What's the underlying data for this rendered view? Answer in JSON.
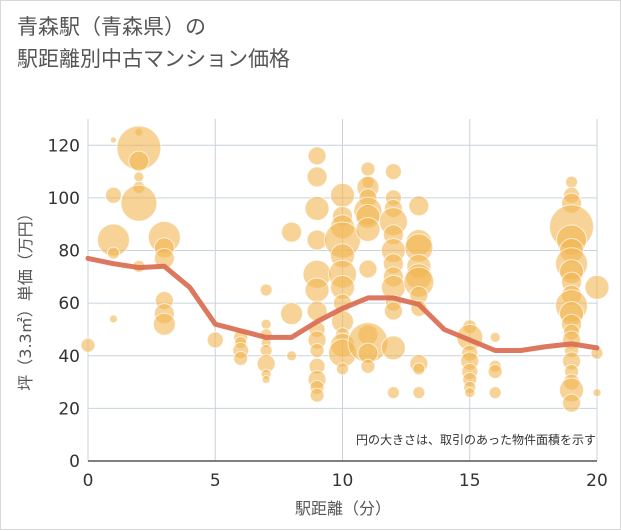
{
  "title": {
    "line1": "青森駅（青森県）の",
    "line2": "駅距離別中古マンション価格"
  },
  "chart_data": {
    "type": "scatter",
    "title": "青森駅（青森県）の駅距離別中古マンション価格",
    "xlabel": "駅距離（分）",
    "ylabel": "坪（3.3㎡）単価（万円）",
    "xlim": [
      0,
      20
    ],
    "ylim": [
      0,
      130
    ],
    "xticks": [
      0,
      5,
      10,
      15,
      20
    ],
    "yticks": [
      0,
      20,
      40,
      60,
      80,
      100,
      120
    ],
    "grid": true,
    "annotation": "円の大きさは、取引のあった物件面積を示す",
    "colors": {
      "bubble": "#f2b651",
      "trend": "#d9694f",
      "grid": "#c8d4dc",
      "axis": "#555555"
    },
    "bubbles": [
      {
        "x": 0,
        "y": 44,
        "s": 7
      },
      {
        "x": 1,
        "y": 122,
        "s": 3
      },
      {
        "x": 1,
        "y": 101,
        "s": 8
      },
      {
        "x": 1,
        "y": 84,
        "s": 16
      },
      {
        "x": 1,
        "y": 79,
        "s": 6
      },
      {
        "x": 1,
        "y": 54,
        "s": 4
      },
      {
        "x": 2,
        "y": 125,
        "s": 4
      },
      {
        "x": 2,
        "y": 119,
        "s": 22
      },
      {
        "x": 2,
        "y": 114,
        "s": 10
      },
      {
        "x": 2,
        "y": 108,
        "s": 5
      },
      {
        "x": 2,
        "y": 104,
        "s": 6
      },
      {
        "x": 2,
        "y": 98,
        "s": 18
      },
      {
        "x": 2,
        "y": 74,
        "s": 6
      },
      {
        "x": 3,
        "y": 85,
        "s": 16
      },
      {
        "x": 3,
        "y": 81,
        "s": 10
      },
      {
        "x": 3,
        "y": 77,
        "s": 10
      },
      {
        "x": 3,
        "y": 61,
        "s": 9
      },
      {
        "x": 3,
        "y": 56,
        "s": 10
      },
      {
        "x": 3,
        "y": 52,
        "s": 11
      },
      {
        "x": 5,
        "y": 46,
        "s": 8
      },
      {
        "x": 6,
        "y": 47,
        "s": 7
      },
      {
        "x": 6,
        "y": 45,
        "s": 6
      },
      {
        "x": 6,
        "y": 42,
        "s": 8
      },
      {
        "x": 6,
        "y": 39,
        "s": 7
      },
      {
        "x": 7,
        "y": 65,
        "s": 6
      },
      {
        "x": 7,
        "y": 52,
        "s": 5
      },
      {
        "x": 7,
        "y": 48,
        "s": 6
      },
      {
        "x": 7,
        "y": 45,
        "s": 5
      },
      {
        "x": 7,
        "y": 42,
        "s": 6
      },
      {
        "x": 7,
        "y": 37,
        "s": 9
      },
      {
        "x": 7,
        "y": 33,
        "s": 5
      },
      {
        "x": 7,
        "y": 31,
        "s": 4
      },
      {
        "x": 8,
        "y": 87,
        "s": 10
      },
      {
        "x": 8,
        "y": 56,
        "s": 11
      },
      {
        "x": 8,
        "y": 40,
        "s": 5
      },
      {
        "x": 9,
        "y": 116,
        "s": 9
      },
      {
        "x": 9,
        "y": 108,
        "s": 10
      },
      {
        "x": 9,
        "y": 96,
        "s": 12
      },
      {
        "x": 9,
        "y": 84,
        "s": 10
      },
      {
        "x": 9,
        "y": 71,
        "s": 14
      },
      {
        "x": 9,
        "y": 65,
        "s": 12
      },
      {
        "x": 9,
        "y": 57,
        "s": 10
      },
      {
        "x": 9,
        "y": 50,
        "s": 8
      },
      {
        "x": 9,
        "y": 46,
        "s": 9
      },
      {
        "x": 9,
        "y": 42,
        "s": 7
      },
      {
        "x": 9,
        "y": 36,
        "s": 8
      },
      {
        "x": 9,
        "y": 31,
        "s": 9
      },
      {
        "x": 9,
        "y": 28,
        "s": 7
      },
      {
        "x": 9,
        "y": 25,
        "s": 7
      },
      {
        "x": 10,
        "y": 101,
        "s": 12
      },
      {
        "x": 10,
        "y": 93,
        "s": 10
      },
      {
        "x": 10,
        "y": 89,
        "s": 12
      },
      {
        "x": 10,
        "y": 84,
        "s": 18
      },
      {
        "x": 10,
        "y": 78,
        "s": 12
      },
      {
        "x": 10,
        "y": 71,
        "s": 14
      },
      {
        "x": 10,
        "y": 66,
        "s": 12
      },
      {
        "x": 10,
        "y": 60,
        "s": 9
      },
      {
        "x": 10,
        "y": 53,
        "s": 11
      },
      {
        "x": 10,
        "y": 48,
        "s": 7
      },
      {
        "x": 10,
        "y": 44,
        "s": 12
      },
      {
        "x": 10,
        "y": 41,
        "s": 14
      },
      {
        "x": 10,
        "y": 35,
        "s": 6
      },
      {
        "x": 11,
        "y": 111,
        "s": 7
      },
      {
        "x": 11,
        "y": 106,
        "s": 6
      },
      {
        "x": 11,
        "y": 104,
        "s": 11
      },
      {
        "x": 11,
        "y": 100,
        "s": 9
      },
      {
        "x": 11,
        "y": 95,
        "s": 14
      },
      {
        "x": 11,
        "y": 93,
        "s": 12
      },
      {
        "x": 11,
        "y": 88,
        "s": 12
      },
      {
        "x": 11,
        "y": 73,
        "s": 9
      },
      {
        "x": 11,
        "y": 48,
        "s": 10
      },
      {
        "x": 11,
        "y": 45,
        "s": 20
      },
      {
        "x": 11,
        "y": 41,
        "s": 10
      },
      {
        "x": 11,
        "y": 36,
        "s": 7
      },
      {
        "x": 12,
        "y": 110,
        "s": 8
      },
      {
        "x": 12,
        "y": 100,
        "s": 8
      },
      {
        "x": 12,
        "y": 96,
        "s": 9
      },
      {
        "x": 12,
        "y": 91,
        "s": 14
      },
      {
        "x": 12,
        "y": 86,
        "s": 10
      },
      {
        "x": 12,
        "y": 80,
        "s": 12
      },
      {
        "x": 12,
        "y": 75,
        "s": 10
      },
      {
        "x": 12,
        "y": 70,
        "s": 10
      },
      {
        "x": 12,
        "y": 66,
        "s": 12
      },
      {
        "x": 12,
        "y": 60,
        "s": 8
      },
      {
        "x": 12,
        "y": 57,
        "s": 9
      },
      {
        "x": 12,
        "y": 43,
        "s": 12
      },
      {
        "x": 12,
        "y": 26,
        "s": 6
      },
      {
        "x": 13,
        "y": 97,
        "s": 10
      },
      {
        "x": 13,
        "y": 83,
        "s": 13
      },
      {
        "x": 13,
        "y": 81,
        "s": 14
      },
      {
        "x": 13,
        "y": 74,
        "s": 12
      },
      {
        "x": 13,
        "y": 70,
        "s": 13
      },
      {
        "x": 13,
        "y": 68,
        "s": 15
      },
      {
        "x": 13,
        "y": 63,
        "s": 9
      },
      {
        "x": 13,
        "y": 58,
        "s": 8
      },
      {
        "x": 13,
        "y": 37,
        "s": 9
      },
      {
        "x": 13,
        "y": 35,
        "s": 6
      },
      {
        "x": 13,
        "y": 26,
        "s": 6
      },
      {
        "x": 15,
        "y": 51,
        "s": 7
      },
      {
        "x": 15,
        "y": 47,
        "s": 13
      },
      {
        "x": 15,
        "y": 41,
        "s": 8
      },
      {
        "x": 15,
        "y": 38,
        "s": 9
      },
      {
        "x": 15,
        "y": 34,
        "s": 8
      },
      {
        "x": 15,
        "y": 31,
        "s": 7
      },
      {
        "x": 15,
        "y": 28,
        "s": 6
      },
      {
        "x": 15,
        "y": 26,
        "s": 5
      },
      {
        "x": 16,
        "y": 47,
        "s": 5
      },
      {
        "x": 16,
        "y": 36,
        "s": 6
      },
      {
        "x": 16,
        "y": 34,
        "s": 7
      },
      {
        "x": 16,
        "y": 26,
        "s": 6
      },
      {
        "x": 19,
        "y": 106,
        "s": 6
      },
      {
        "x": 19,
        "y": 101,
        "s": 8
      },
      {
        "x": 19,
        "y": 98,
        "s": 10
      },
      {
        "x": 19,
        "y": 89,
        "s": 22
      },
      {
        "x": 19,
        "y": 84,
        "s": 15
      },
      {
        "x": 19,
        "y": 80,
        "s": 12
      },
      {
        "x": 19,
        "y": 75,
        "s": 16
      },
      {
        "x": 19,
        "y": 72,
        "s": 12
      },
      {
        "x": 19,
        "y": 68,
        "s": 10
      },
      {
        "x": 19,
        "y": 63,
        "s": 10
      },
      {
        "x": 19,
        "y": 59,
        "s": 16
      },
      {
        "x": 19,
        "y": 56,
        "s": 12
      },
      {
        "x": 19,
        "y": 52,
        "s": 10
      },
      {
        "x": 19,
        "y": 49,
        "s": 8
      },
      {
        "x": 19,
        "y": 46,
        "s": 9
      },
      {
        "x": 19,
        "y": 42,
        "s": 7
      },
      {
        "x": 19,
        "y": 38,
        "s": 9
      },
      {
        "x": 19,
        "y": 34,
        "s": 7
      },
      {
        "x": 19,
        "y": 30,
        "s": 8
      },
      {
        "x": 19,
        "y": 27,
        "s": 12
      },
      {
        "x": 19,
        "y": 22,
        "s": 9
      },
      {
        "x": 20,
        "y": 66,
        "s": 12
      },
      {
        "x": 20,
        "y": 41,
        "s": 6
      },
      {
        "x": 20,
        "y": 26,
        "s": 4
      }
    ],
    "trend": {
      "x": [
        0,
        1,
        2,
        3,
        4,
        5,
        6,
        7,
        8,
        9,
        10,
        11,
        12,
        13,
        14,
        15,
        16,
        17,
        18,
        19,
        20
      ],
      "y": [
        77,
        75,
        73.5,
        74,
        66,
        52,
        49.5,
        47,
        47,
        53,
        58,
        62,
        62,
        59.5,
        50,
        46,
        42,
        42,
        43.5,
        44.5,
        43
      ]
    }
  }
}
